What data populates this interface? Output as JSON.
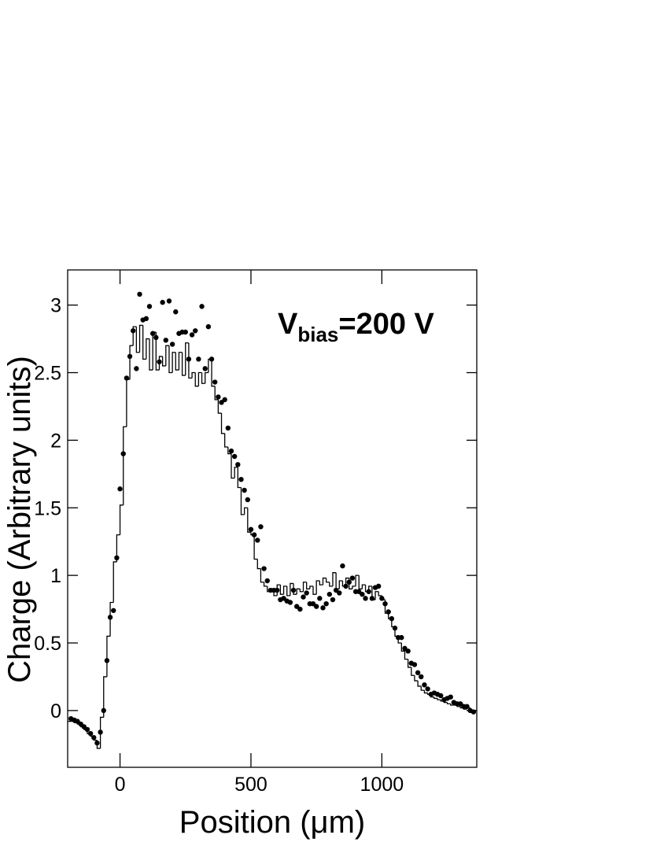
{
  "chart_data": {
    "type": "scatter",
    "annotation": {
      "base": "V",
      "sub": "bias",
      "rest": "=200 V"
    },
    "x_label": "Position (μm)",
    "y_label": "Charge (Arbitrary units)",
    "color": "#000000",
    "x": [
      -187.5,
      -175,
      -162.5,
      -150,
      -137.5,
      -125,
      -112.5,
      -100,
      -87.5,
      -75,
      -62.5,
      -50,
      -37.5,
      -25,
      -12.5,
      0,
      12.5,
      25,
      37.5,
      50,
      62.5,
      75,
      87.5,
      100,
      112.5,
      125,
      137.5,
      150,
      162.5,
      175,
      187.5,
      200,
      212.5,
      225,
      237.5,
      250,
      262.5,
      275,
      287.5,
      300,
      312.5,
      325,
      337.5,
      350,
      362.5,
      375,
      387.5,
      400,
      412.5,
      425,
      437.5,
      450,
      462.5,
      475,
      487.5,
      500,
      512.5,
      525,
      537.5,
      550,
      562.5,
      575,
      587.5,
      600,
      612.5,
      625,
      637.5,
      650,
      662.5,
      675,
      687.5,
      700,
      712.5,
      725,
      737.5,
      750,
      762.5,
      775,
      787.5,
      800,
      812.5,
      825,
      837.5,
      850,
      862.5,
      875,
      887.5,
      900,
      912.5,
      925,
      937.5,
      950,
      962.5,
      975,
      987.5,
      1000,
      1012.5,
      1025,
      1037.5,
      1050,
      1062.5,
      1075,
      1087.5,
      1100,
      1112.5,
      1125,
      1137.5,
      1150,
      1162.5,
      1175,
      1187.5,
      1200,
      1212.5,
      1225,
      1237.5,
      1250,
      1262.5,
      1275,
      1287.5,
      1300,
      1312.5,
      1325,
      1337.5,
      1350
    ],
    "values": [
      -0.06,
      -0.07,
      -0.08,
      -0.1,
      -0.12,
      -0.14,
      -0.17,
      -0.2,
      -0.24,
      -0.16,
      0.0,
      0.37,
      0.69,
      0.74,
      1.13,
      1.64,
      1.9,
      2.46,
      2.62,
      2.81,
      2.53,
      3.08,
      2.89,
      2.9,
      2.99,
      2.79,
      2.76,
      2.58,
      3.02,
      2.74,
      3.03,
      2.71,
      2.95,
      2.79,
      2.8,
      2.8,
      2.6,
      2.78,
      2.81,
      2.6,
      2.99,
      2.53,
      2.84,
      2.6,
      2.43,
      2.32,
      2.28,
      2.3,
      2.09,
      1.92,
      1.88,
      1.82,
      1.71,
      1.63,
      1.56,
      1.34,
      1.3,
      1.26,
      1.36,
      1.05,
      0.96,
      0.89,
      0.89,
      0.89,
      0.82,
      0.83,
      0.81,
      0.8,
      0.89,
      0.77,
      0.75,
      0.84,
      0.87,
      0.79,
      0.79,
      0.77,
      0.83,
      0.76,
      0.79,
      0.86,
      0.82,
      0.89,
      0.87,
      1.07,
      0.92,
      0.95,
      0.98,
      0.88,
      0.88,
      0.86,
      0.83,
      0.88,
      0.83,
      0.91,
      0.92,
      0.83,
      0.79,
      0.73,
      0.68,
      0.61,
      0.54,
      0.54,
      0.46,
      0.44,
      0.35,
      0.34,
      0.28,
      0.25,
      0.19,
      0.16,
      0.12,
      0.13,
      0.12,
      0.11,
      0.08,
      0.09,
      0.1,
      0.06,
      0.05,
      0.05,
      0.03,
      0.03,
      0.0,
      -0.01
    ],
    "overlay": {
      "type": "histogram",
      "color": "#000000",
      "bins": [
        -200,
        -187.5,
        -175,
        -162.5,
        -150,
        -137.5,
        -125,
        -112.5,
        -100,
        -87.5,
        -75,
        -62.5,
        -50,
        -37.5,
        -25,
        -12.5,
        0,
        12.5,
        25,
        37.5,
        50,
        62.5,
        75,
        87.5,
        100,
        112.5,
        125,
        137.5,
        150,
        162.5,
        175,
        187.5,
        200,
        212.5,
        225,
        237.5,
        250,
        262.5,
        275,
        287.5,
        300,
        312.5,
        325,
        337.5,
        350,
        362.5,
        375,
        387.5,
        400,
        412.5,
        425,
        437.5,
        450,
        462.5,
        475,
        487.5,
        500,
        512.5,
        525,
        537.5,
        550,
        562.5,
        575,
        587.5,
        600,
        612.5,
        625,
        637.5,
        650,
        662.5,
        675,
        687.5,
        700,
        712.5,
        725,
        737.5,
        750,
        762.5,
        775,
        787.5,
        800,
        812.5,
        825,
        837.5,
        850,
        862.5,
        875,
        887.5,
        900,
        912.5,
        925,
        937.5,
        950,
        962.5,
        975,
        987.5,
        1000,
        1012.5,
        1025,
        1037.5,
        1050,
        1062.5,
        1075,
        1087.5,
        1100,
        1112.5,
        1125,
        1137.5,
        1150,
        1162.5,
        1175,
        1187.5,
        1200,
        1212.5,
        1225,
        1237.5,
        1250,
        1262.5,
        1275,
        1287.5,
        1300,
        1312.5,
        1325,
        1337.5,
        1350,
        1362.5
      ],
      "counts": [
        -0.08,
        -0.08,
        -0.09,
        -0.1,
        -0.12,
        -0.14,
        -0.17,
        -0.19,
        -0.22,
        -0.28,
        -0.05,
        0.25,
        0.55,
        0.8,
        1.1,
        1.3,
        1.52,
        2.1,
        2.45,
        2.7,
        2.84,
        2.65,
        2.85,
        2.6,
        2.75,
        2.52,
        2.8,
        2.52,
        2.62,
        2.55,
        2.7,
        2.5,
        2.65,
        2.52,
        2.65,
        2.48,
        2.72,
        2.46,
        2.5,
        2.4,
        2.5,
        2.42,
        2.5,
        2.6,
        2.4,
        2.3,
        2.2,
        2.05,
        1.95,
        1.9,
        1.72,
        1.8,
        1.65,
        1.45,
        1.5,
        1.32,
        1.3,
        1.12,
        1.05,
        0.95,
        0.92,
        0.88,
        0.9,
        0.85,
        0.93,
        0.86,
        0.92,
        0.85,
        0.94,
        0.86,
        0.9,
        0.88,
        0.95,
        0.9,
        0.92,
        0.86,
        0.96,
        0.93,
        0.98,
        0.95,
        0.92,
        1.02,
        0.9,
        0.96,
        0.92,
        0.98,
        0.9,
        0.92,
        1.0,
        0.9,
        0.93,
        0.88,
        0.92,
        0.82,
        0.88,
        0.85,
        0.82,
        0.72,
        0.68,
        0.62,
        0.55,
        0.5,
        0.44,
        0.38,
        0.32,
        0.26,
        0.22,
        0.18,
        0.15,
        0.13,
        0.12,
        0.1,
        0.09,
        0.08,
        0.07,
        0.06,
        0.05,
        0.04,
        0.04,
        0.03,
        0.02,
        0.01,
        0.02,
        0.0,
        0.0
      ]
    },
    "xlim": [
      -200,
      1362.5
    ],
    "ylim": [
      -0.42,
      3.26
    ],
    "xticks": [
      0,
      500,
      1000
    ],
    "yticks": [
      0,
      0.5,
      1,
      1.5,
      2,
      2.5,
      3
    ]
  }
}
